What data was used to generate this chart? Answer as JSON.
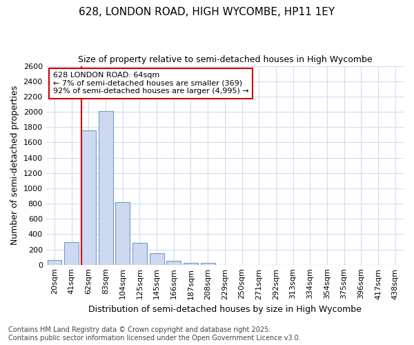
{
  "title": "628, LONDON ROAD, HIGH WYCOMBE, HP11 1EY",
  "subtitle": "Size of property relative to semi-detached houses in High Wycombe",
  "xlabel": "Distribution of semi-detached houses by size in High Wycombe",
  "ylabel": "Number of semi-detached properties",
  "categories": [
    "20sqm",
    "41sqm",
    "62sqm",
    "83sqm",
    "104sqm",
    "125sqm",
    "145sqm",
    "166sqm",
    "187sqm",
    "208sqm",
    "229sqm",
    "250sqm",
    "271sqm",
    "292sqm",
    "313sqm",
    "334sqm",
    "354sqm",
    "375sqm",
    "396sqm",
    "417sqm",
    "438sqm"
  ],
  "values": [
    60,
    295,
    1760,
    2010,
    820,
    285,
    155,
    50,
    25,
    20,
    0,
    0,
    0,
    0,
    0,
    0,
    0,
    0,
    0,
    0,
    0
  ],
  "bar_color": "#ccd9f0",
  "bar_edge_color": "#7399c6",
  "vline_color": "#cc0000",
  "vline_x": 1.5,
  "annotation_title": "628 LONDON ROAD: 64sqm",
  "annotation_line1": "← 7% of semi-detached houses are smaller (369)",
  "annotation_line2": "92% of semi-detached houses are larger (4,995) →",
  "annotation_box_color": "#cc0000",
  "ylim": [
    0,
    2600
  ],
  "yticks": [
    0,
    200,
    400,
    600,
    800,
    1000,
    1200,
    1400,
    1600,
    1800,
    2000,
    2200,
    2400,
    2600
  ],
  "footer1": "Contains HM Land Registry data © Crown copyright and database right 2025.",
  "footer2": "Contains public sector information licensed under the Open Government Licence v3.0.",
  "background_color": "#ffffff",
  "plot_background_color": "#ffffff",
  "grid_color": "#d0daf0",
  "title_fontsize": 11,
  "subtitle_fontsize": 9,
  "axis_label_fontsize": 9,
  "tick_fontsize": 8,
  "annotation_fontsize": 8,
  "footer_fontsize": 7
}
